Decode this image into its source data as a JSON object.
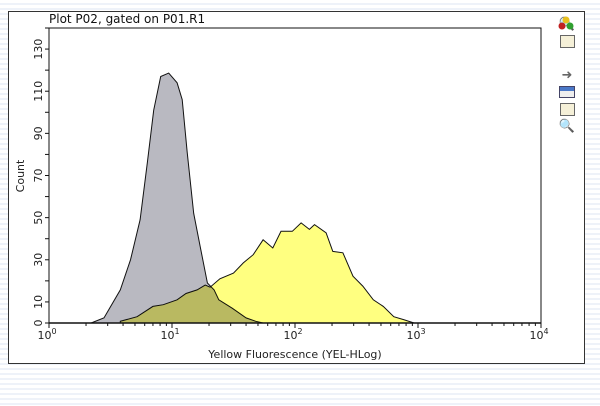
{
  "chart_data": {
    "type": "area",
    "title": "Plot P02, gated on P01.R1",
    "xlabel": "Yellow Fluorescence (YEL-HLog)",
    "ylabel": "Count",
    "x_scale": "log",
    "xlim": [
      1,
      10000
    ],
    "ylim": [
      0,
      140
    ],
    "x_ticks": [
      {
        "base": "10",
        "exp": "0"
      },
      {
        "base": "10",
        "exp": "1"
      },
      {
        "base": "10",
        "exp": "2"
      },
      {
        "base": "10",
        "exp": "3"
      },
      {
        "base": "10",
        "exp": "4"
      }
    ],
    "y_ticks": [
      "0",
      "10",
      "30",
      "50",
      "70",
      "90",
      "110",
      "130"
    ],
    "grid": false,
    "series": [
      {
        "color": "#b9b9c1",
        "x": [
          2.2,
          2.8,
          3.8,
          4.6,
          5.5,
          6.3,
          7.1,
          8.1,
          9.4,
          11,
          12.1,
          13.3,
          15,
          17,
          19.4,
          22,
          24,
          31,
          40,
          48,
          55
        ],
        "y": [
          0,
          2.4,
          15.7,
          30,
          49,
          76,
          101,
          117,
          118.6,
          114,
          106,
          81,
          52,
          36,
          19,
          15.7,
          11,
          7,
          2.4,
          0.8,
          0
        ]
      },
      {
        "color": "#ffff80",
        "x": [
          3.8,
          5.2,
          7,
          8.5,
          11,
          13,
          16,
          18.6,
          20.4,
          24.5,
          31.6,
          38,
          45.7,
          55,
          66,
          77,
          95,
          112,
          131,
          144,
          179,
          203,
          245,
          296,
          356,
          433,
          522,
          636,
          763,
          930
        ],
        "y": [
          0.8,
          3,
          7.9,
          8.7,
          11,
          14,
          15.7,
          18,
          17,
          21,
          23.7,
          28.5,
          32.4,
          39.5,
          35.6,
          43.5,
          43.5,
          47.5,
          44.4,
          46.7,
          42.8,
          34,
          33.3,
          22.2,
          17.5,
          11,
          7.9,
          3,
          1.6,
          0
        ]
      }
    ]
  },
  "toolbar": {
    "icons": [
      "zoom-in-icon",
      "properties-icon",
      "color-palette-icon",
      "export-icon",
      "print-icon",
      "copy-icon",
      "zoom-out-icon"
    ]
  }
}
